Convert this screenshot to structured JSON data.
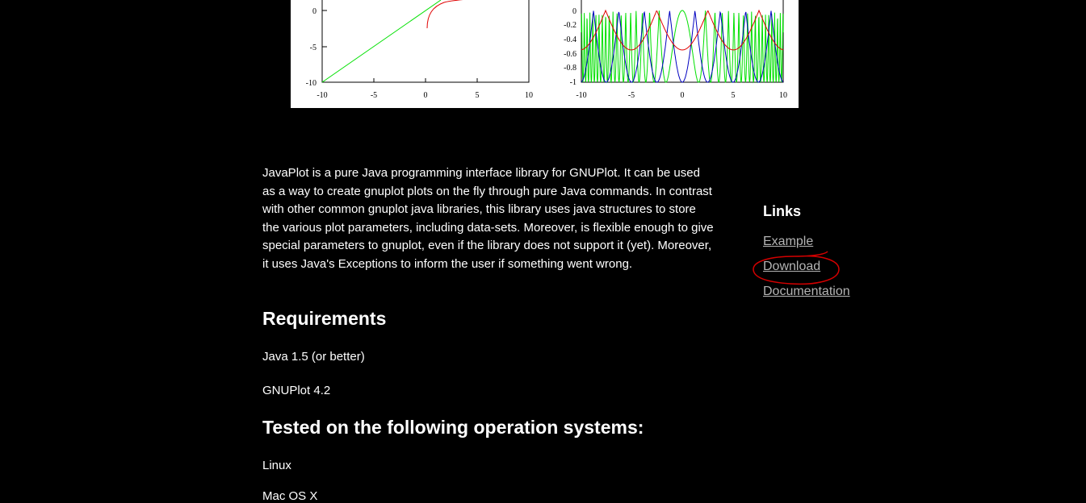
{
  "figure": {
    "left_plot": {
      "x_ticks": [
        "-10",
        "-5",
        "0",
        "5",
        "10"
      ],
      "y_ticks": [
        "0",
        "-5",
        "-10"
      ]
    },
    "right_plot": {
      "x_ticks": [
        "-10",
        "-5",
        "0",
        "5",
        "10"
      ],
      "y_ticks": [
        "0",
        "-0.2",
        "-0.4",
        "-0.6",
        "-0.8",
        "-1"
      ]
    },
    "colors": {
      "green": "#00e000",
      "red": "#e00000",
      "blue": "#0000c0"
    }
  },
  "content": {
    "intro": "JavaPlot is a pure Java programming interface library for GNUPlot. It can be used as a way to create gnuplot plots on the fly through pure Java commands. In contrast with other common gnuplot java libraries, this library uses java structures to store the various plot parameters, including data-sets. Moreover, is flexible enough to give special parameters to gnuplot, even if the library does not support it (yet). Moreover, it uses Java's Exceptions to inform the user if something went wrong.",
    "requirements_heading": "Requirements",
    "requirements": [
      "Java 1.5 (or better)",
      "GNUPlot 4.2"
    ],
    "os_heading": "Tested on the following operation systems:",
    "os": [
      "Linux",
      "Mac OS X"
    ]
  },
  "sidebar": {
    "title": "Links",
    "links": [
      "Example",
      "Download",
      "Documentation"
    ]
  },
  "annotation": {
    "circle_color": "#d40000"
  }
}
